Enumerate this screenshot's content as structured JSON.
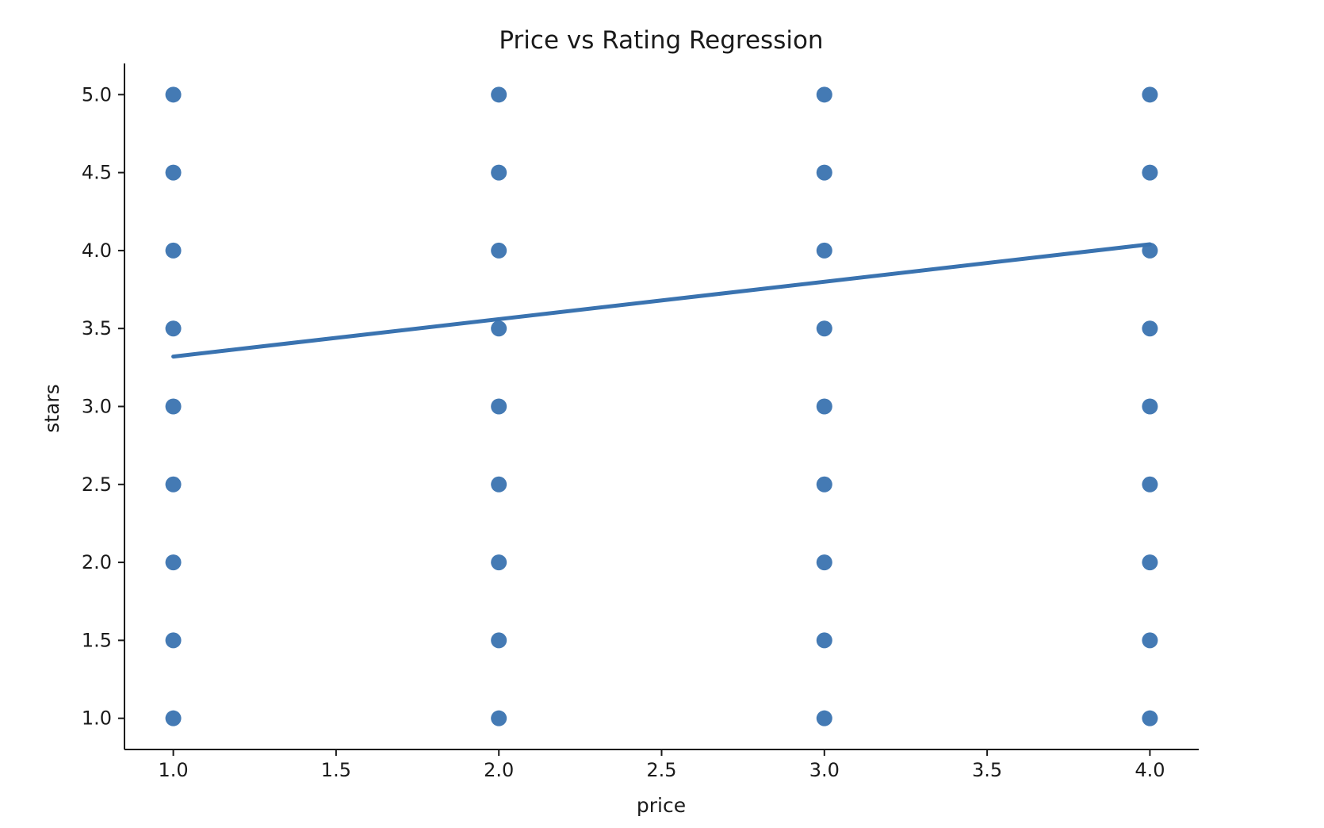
{
  "chart_data": {
    "type": "scatter",
    "title": "Price vs Rating Regression",
    "xlabel": "price",
    "ylabel": "stars",
    "xlim": [
      0.85,
      4.15
    ],
    "ylim": [
      0.8,
      5.2
    ],
    "x_ticks": [
      "1.0",
      "1.5",
      "2.0",
      "2.5",
      "3.0",
      "3.5",
      "4.0"
    ],
    "y_ticks": [
      "1.0",
      "1.5",
      "2.0",
      "2.5",
      "3.0",
      "3.5",
      "4.0",
      "4.5",
      "5.0"
    ],
    "grid": false,
    "point_color": "#3a73b0",
    "line_color": "#3a73b0",
    "series": [
      {
        "points": [
          {
            "x": 1,
            "y": 5.0
          },
          {
            "x": 1,
            "y": 4.5
          },
          {
            "x": 1,
            "y": 4.0
          },
          {
            "x": 1,
            "y": 3.5
          },
          {
            "x": 1,
            "y": 3.0
          },
          {
            "x": 1,
            "y": 2.5
          },
          {
            "x": 1,
            "y": 2.0
          },
          {
            "x": 1,
            "y": 1.5
          },
          {
            "x": 1,
            "y": 1.0
          },
          {
            "x": 2,
            "y": 5.0
          },
          {
            "x": 2,
            "y": 4.5
          },
          {
            "x": 2,
            "y": 4.0
          },
          {
            "x": 2,
            "y": 3.5
          },
          {
            "x": 2,
            "y": 3.0
          },
          {
            "x": 2,
            "y": 2.5
          },
          {
            "x": 2,
            "y": 2.0
          },
          {
            "x": 2,
            "y": 1.5
          },
          {
            "x": 2,
            "y": 1.0
          },
          {
            "x": 3,
            "y": 5.0
          },
          {
            "x": 3,
            "y": 4.5
          },
          {
            "x": 3,
            "y": 4.0
          },
          {
            "x": 3,
            "y": 3.5
          },
          {
            "x": 3,
            "y": 3.0
          },
          {
            "x": 3,
            "y": 2.5
          },
          {
            "x": 3,
            "y": 2.0
          },
          {
            "x": 3,
            "y": 1.5
          },
          {
            "x": 3,
            "y": 1.0
          },
          {
            "x": 4,
            "y": 5.0
          },
          {
            "x": 4,
            "y": 4.5
          },
          {
            "x": 4,
            "y": 4.0
          },
          {
            "x": 4,
            "y": 3.5
          },
          {
            "x": 4,
            "y": 3.0
          },
          {
            "x": 4,
            "y": 2.5
          },
          {
            "x": 4,
            "y": 2.0
          },
          {
            "x": 4,
            "y": 1.5
          },
          {
            "x": 4,
            "y": 1.0
          }
        ]
      }
    ],
    "regression_line": {
      "points": [
        {
          "x": 1.0,
          "y": 3.32
        },
        {
          "x": 4.0,
          "y": 4.04
        }
      ]
    }
  }
}
